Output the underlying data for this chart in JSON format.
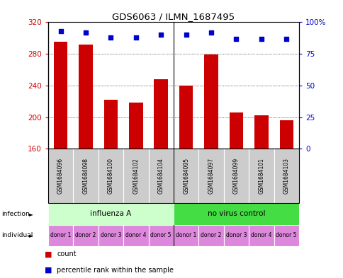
{
  "title": "GDS6063 / ILMN_1687495",
  "samples": [
    "GSM1684096",
    "GSM1684098",
    "GSM1684100",
    "GSM1684102",
    "GSM1684104",
    "GSM1684095",
    "GSM1684097",
    "GSM1684099",
    "GSM1684101",
    "GSM1684103"
  ],
  "counts": [
    295,
    292,
    222,
    218,
    248,
    240,
    279,
    206,
    202,
    196
  ],
  "percentiles": [
    93,
    92,
    88,
    88,
    90,
    90,
    92,
    87,
    87,
    87
  ],
  "ylim_left": [
    160,
    320
  ],
  "ylim_right": [
    0,
    100
  ],
  "yticks_left": [
    160,
    200,
    240,
    280,
    320
  ],
  "yticks_right": [
    0,
    25,
    50,
    75,
    100
  ],
  "bar_color": "#cc0000",
  "dot_color": "#0000cc",
  "infection_groups": [
    {
      "label": "influenza A",
      "start": 0,
      "end": 5,
      "color": "#ccffcc"
    },
    {
      "label": "no virus control",
      "start": 5,
      "end": 10,
      "color": "#44dd44"
    }
  ],
  "donors": [
    "donor 1",
    "donor 2",
    "donor 3",
    "donor 4",
    "donor 5",
    "donor 1",
    "donor 2",
    "donor 3",
    "donor 4",
    "donor 5"
  ],
  "donor_color": "#dd88dd",
  "sample_bg_color": "#cccccc",
  "ylabel_left_color": "#cc0000",
  "ylabel_right_color": "#0000cc",
  "background_color": "#ffffff",
  "legend_count_color": "#cc0000",
  "legend_pct_color": "#0000cc",
  "border_color": "#000000"
}
